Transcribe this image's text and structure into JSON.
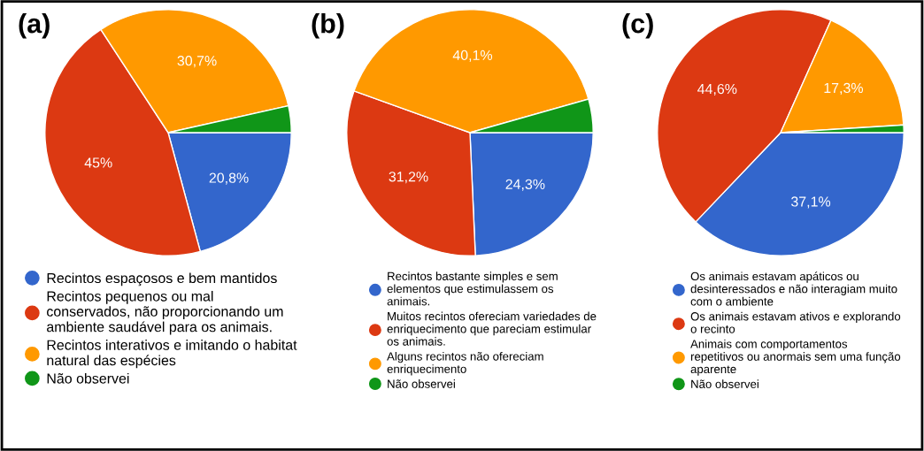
{
  "chart_data": [
    {
      "type": "pie",
      "title": "(a)",
      "categories": [
        "Recintos espaçosos e bem mantidos",
        "Recintos pequenos ou mal\nconservados, não proporcionando um\nambiente saudável para os animais.",
        "Recintos interativos e imitando o habitat\nnatural das espécies",
        "Não observei"
      ],
      "values": [
        20.8,
        45,
        30.7,
        3.5
      ],
      "colors": [
        "#3366cc",
        "#dc3912",
        "#ff9900",
        "#109618"
      ],
      "value_labels": [
        "20,8%",
        "45%",
        "30,7%",
        null
      ],
      "legend": "bottom"
    },
    {
      "type": "pie",
      "title": "(b)",
      "categories": [
        "Recintos bastante simples e sem\nelementos que estimulassem os\nanimais.",
        "Muitos recintos ofereciam variedades de\nenriquecimento que pareciam estimular\nos animais.",
        "Alguns recintos não ofereciam\nenriquecimento",
        "Não observei"
      ],
      "values": [
        24.3,
        31.2,
        40.1,
        4.4
      ],
      "colors": [
        "#3366cc",
        "#dc3912",
        "#ff9900",
        "#109618"
      ],
      "value_labels": [
        "24,3%",
        "31,2%",
        "40,1%",
        null
      ],
      "legend": "bottom"
    },
    {
      "type": "pie",
      "title": "(c)",
      "categories": [
        "Os animais estavam apáticos ou\ndesinteressados e não interagiam muito\ncom o ambiente",
        "Os animais estavam ativos e explorando\no recinto",
        "Animais com comportamentos\nrepetitivos ou anormais sem uma função\naparente",
        "Não observei"
      ],
      "values": [
        37.1,
        44.6,
        17.3,
        1.0
      ],
      "colors": [
        "#3366cc",
        "#dc3912",
        "#ff9900",
        "#109618"
      ],
      "value_labels": [
        "37,1%",
        "44,6%",
        "17,3%",
        null
      ],
      "legend": "bottom"
    }
  ]
}
